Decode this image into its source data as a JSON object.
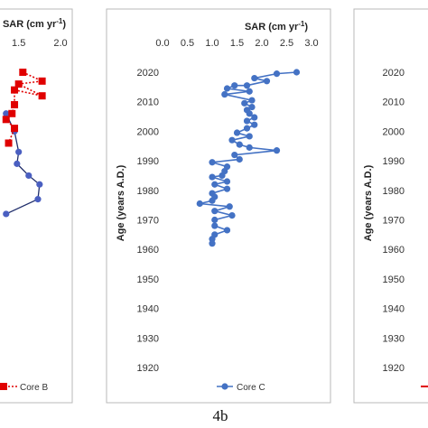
{
  "figure_label": "4b",
  "colors": {
    "core_b": "#e00000",
    "core_c": "#4472c4",
    "core_a": "#1f2d6b",
    "frame": "#b8b8b8"
  },
  "chart_data": [
    {
      "panel": "left",
      "type": "scatter",
      "x_axis_title_main": "SAR (cm yr",
      "x_axis_title_sup": "-1",
      "x_axis_title_end": ")",
      "xticks": [
        "1.5",
        "2.0"
      ],
      "xlim": [
        0.5,
        2.0
      ],
      "ylim": [
        1920,
        2025
      ],
      "legend": [
        "Core B"
      ],
      "series": [
        {
          "name": "Core B",
          "style": "red-square-dotted",
          "points": [
            [
              1.55,
              2020
            ],
            [
              1.78,
              2017
            ],
            [
              1.5,
              2016
            ],
            [
              1.78,
              2012
            ],
            [
              1.45,
              2014
            ],
            [
              1.45,
              2009
            ],
            [
              1.42,
              2006
            ],
            [
              1.35,
              2004
            ],
            [
              1.45,
              2001
            ],
            [
              1.38,
              1996
            ]
          ]
        },
        {
          "name": "",
          "style": "navy-line",
          "points": [
            [
              1.35,
              2006
            ],
            [
              1.45,
              2000
            ],
            [
              1.5,
              1993
            ],
            [
              1.48,
              1989
            ],
            [
              1.62,
              1985
            ],
            [
              1.75,
              1982
            ],
            [
              1.73,
              1977
            ],
            [
              1.35,
              1972
            ]
          ]
        }
      ]
    },
    {
      "panel": "center",
      "type": "line",
      "x_axis_title_main": "SAR (cm yr",
      "x_axis_title_sup": "-1",
      "x_axis_title_end": ")",
      "y_axis_title": "Age (years A.D.)",
      "xlim": [
        0.0,
        3.0
      ],
      "xticks": [
        "0.0",
        "0.5",
        "1.0",
        "1.5",
        "2.0",
        "2.5",
        "3.0"
      ],
      "ylim": [
        1920,
        2025
      ],
      "yticks": [
        "2020",
        "2010",
        "2000",
        "1990",
        "1980",
        "1970",
        "1960",
        "1950",
        "1940",
        "1930",
        "1920"
      ],
      "legend": [
        "Core C"
      ],
      "series": [
        {
          "name": "Core C",
          "points": [
            [
              2.7,
              2020
            ],
            [
              2.3,
              2019.5
            ],
            [
              1.85,
              2018
            ],
            [
              2.1,
              2017
            ],
            [
              1.7,
              2015.5
            ],
            [
              1.45,
              2015.5
            ],
            [
              1.3,
              2014.5
            ],
            [
              1.75,
              2013.5
            ],
            [
              1.25,
              2012.5
            ],
            [
              1.8,
              2010.5
            ],
            [
              1.65,
              2009.5
            ],
            [
              1.8,
              2008.2
            ],
            [
              1.7,
              2007.2
            ],
            [
              1.75,
              2006
            ],
            [
              1.85,
              2004.7
            ],
            [
              1.7,
              2003.5
            ],
            [
              1.85,
              2002.2
            ],
            [
              1.7,
              2001
            ],
            [
              1.5,
              1999.5
            ],
            [
              1.75,
              1998.3
            ],
            [
              1.4,
              1997
            ],
            [
              1.55,
              1995.5
            ],
            [
              1.75,
              1994.5
            ],
            [
              2.3,
              1993.5
            ],
            [
              1.45,
              1992
            ],
            [
              1.55,
              1990.5
            ],
            [
              1.0,
              1989.5
            ],
            [
              1.3,
              1988
            ],
            [
              1.25,
              1986.5
            ],
            [
              1.2,
              1985
            ],
            [
              1.0,
              1984.5
            ],
            [
              1.3,
              1983
            ],
            [
              1.05,
              1982
            ],
            [
              1.3,
              1980.5
            ],
            [
              1.0,
              1979
            ],
            [
              1.05,
              1977.8
            ],
            [
              1.0,
              1976.5
            ],
            [
              0.75,
              1975.5
            ],
            [
              1.35,
              1974.5
            ],
            [
              1.05,
              1973
            ],
            [
              1.4,
              1971.5
            ],
            [
              1.05,
              1970
            ],
            [
              1.05,
              1968
            ],
            [
              1.3,
              1966.5
            ],
            [
              1.05,
              1965
            ],
            [
              1.0,
              1963.5
            ],
            [
              1.0,
              1962
            ]
          ]
        }
      ]
    },
    {
      "panel": "right",
      "type": "line",
      "y_axis_title": "Age (years A.D.)",
      "ylim": [
        1920,
        2025
      ],
      "yticks": [
        "2020",
        "2010",
        "2000",
        "1990",
        "1980",
        "1970",
        "1960",
        "1950",
        "1940",
        "1930",
        "1920"
      ]
    }
  ]
}
